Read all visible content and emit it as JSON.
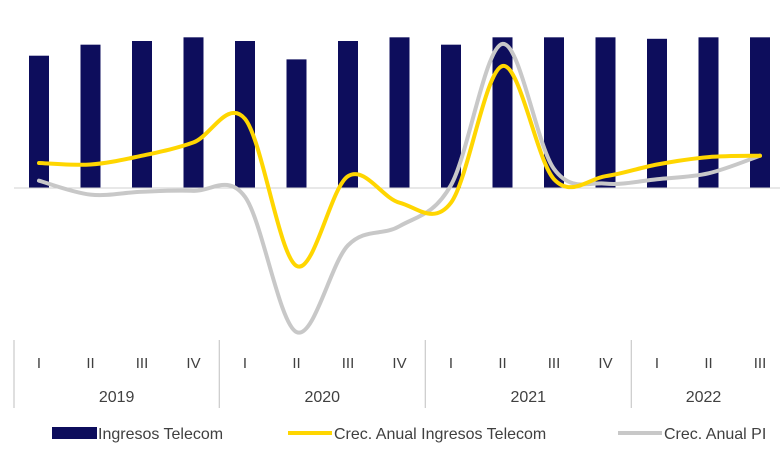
{
  "chart_data": {
    "type": "bar",
    "title": "",
    "xlabel": "",
    "ylabel": "",
    "quarters": [
      "I",
      "II",
      "III",
      "IV",
      "I",
      "II",
      "III",
      "IV",
      "I",
      "II",
      "III",
      "IV",
      "I",
      "II",
      "III"
    ],
    "years": [
      {
        "label": "2019",
        "quarters": 4
      },
      {
        "label": "2020",
        "quarters": 4
      },
      {
        "label": "2021",
        "quarters": 4
      },
      {
        "label": "2022",
        "quarters": 3
      }
    ],
    "ylim": [
      -30,
      32
    ],
    "grid": false,
    "legend_position": "bottom",
    "series": [
      {
        "name": "Ingresos Telecom",
        "kind": "bar",
        "color": "#0d0d5c",
        "values": [
          18,
          19.5,
          20,
          20.5,
          20,
          17.5,
          20,
          20.5,
          19.5,
          20.5,
          20.5,
          20.5,
          20.3,
          20.5,
          20.5
        ]
      },
      {
        "name": "Crec. Anual Ingresos Telecom",
        "kind": "line",
        "color": "#ffd600",
        "values": [
          3.4,
          3.2,
          4.4,
          6.2,
          9.4,
          -10.6,
          1.6,
          -2.0,
          -2.0,
          16.6,
          1.2,
          1.6,
          3.2,
          4.2,
          4.4
        ]
      },
      {
        "name": "Crec. Anual PI",
        "kind": "line",
        "color": "#c8c8c8",
        "values": [
          1.0,
          -0.9,
          -0.5,
          -0.4,
          -1.2,
          -19.6,
          -7.8,
          -5.2,
          0.4,
          19.6,
          2.6,
          0.6,
          1.2,
          2.0,
          4.4
        ]
      }
    ]
  }
}
